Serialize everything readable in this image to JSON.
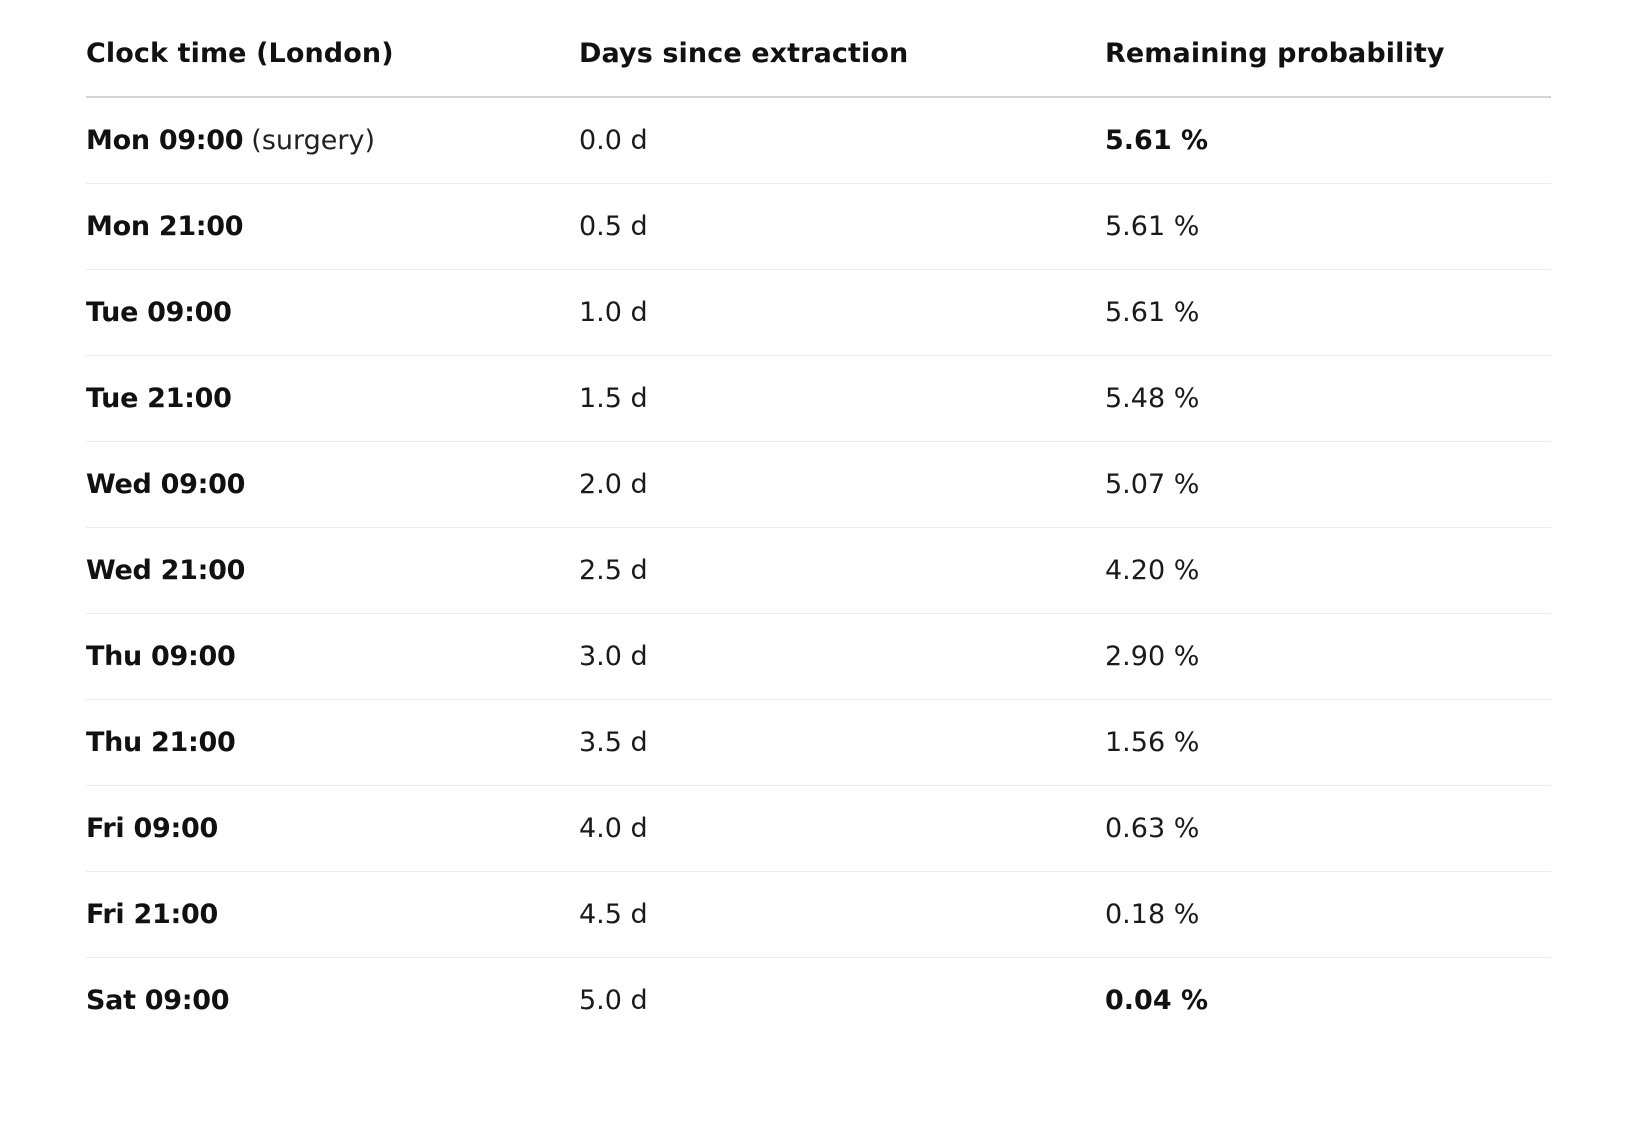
{
  "table": {
    "headers": {
      "clock_time": "Clock time (London)",
      "days_since": "Days since extraction",
      "remaining": "Remaining probability"
    },
    "rows": [
      {
        "time": "Mon 09:00",
        "note": "(surgery)",
        "days": "0.0 d",
        "prob": "5.61 %",
        "prob_bold": true
      },
      {
        "time": "Mon 21:00",
        "note": "",
        "days": "0.5 d",
        "prob": "5.61 %",
        "prob_bold": false
      },
      {
        "time": "Tue 09:00",
        "note": "",
        "days": "1.0 d",
        "prob": "5.61 %",
        "prob_bold": false
      },
      {
        "time": "Tue 21:00",
        "note": "",
        "days": "1.5 d",
        "prob": "5.48 %",
        "prob_bold": false
      },
      {
        "time": "Wed 09:00",
        "note": "",
        "days": "2.0 d",
        "prob": "5.07 %",
        "prob_bold": false
      },
      {
        "time": "Wed 21:00",
        "note": "",
        "days": "2.5 d",
        "prob": "4.20 %",
        "prob_bold": false
      },
      {
        "time": "Thu 09:00",
        "note": "",
        "days": "3.0 d",
        "prob": "2.90 %",
        "prob_bold": false
      },
      {
        "time": "Thu 21:00",
        "note": "",
        "days": "3.5 d",
        "prob": "1.56 %",
        "prob_bold": false
      },
      {
        "time": "Fri 09:00",
        "note": "",
        "days": "4.0 d",
        "prob": "0.63 %",
        "prob_bold": false
      },
      {
        "time": "Fri 21:00",
        "note": "",
        "days": "4.5 d",
        "prob": "0.18 %",
        "prob_bold": false
      },
      {
        "time": "Sat 09:00",
        "note": "",
        "days": "5.0 d",
        "prob": "0.04 %",
        "prob_bold": true
      }
    ]
  },
  "colors": {
    "text": "#111111",
    "header_rule": "#d4d4d4",
    "row_rule": "#ececec",
    "background": "#ffffff"
  }
}
